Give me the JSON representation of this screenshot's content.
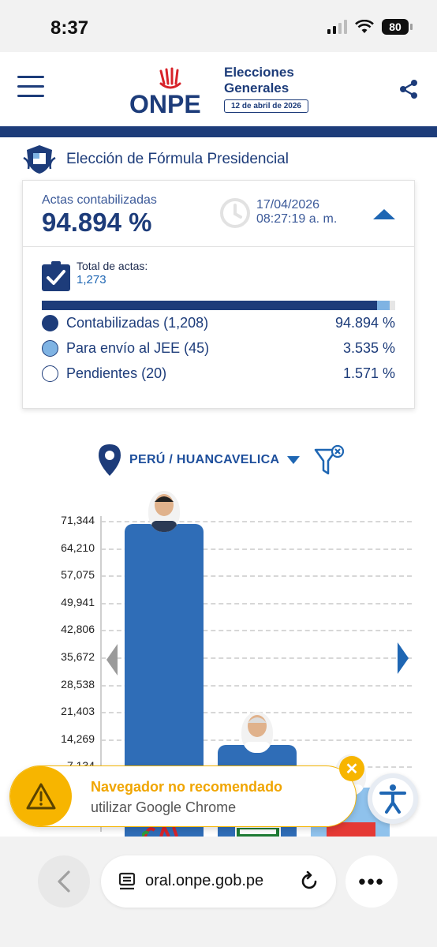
{
  "status_bar": {
    "time": "8:37",
    "battery": "80"
  },
  "header": {
    "logo_text": "ONPE",
    "title_line1": "Elecciones",
    "title_line2": "Generales",
    "election_date": "12 de abril de 2026"
  },
  "section": {
    "title": "Elección de Fórmula Presidencial"
  },
  "summary": {
    "actas_label": "Actas contabilizadas",
    "actas_percent": "94.894 %",
    "updated_date": "17/04/2026",
    "updated_time": "08:27:19 a. m.",
    "total_label": "Total de actas:",
    "total_value": "1,273",
    "progress": {
      "contabilizadas": 0.94894,
      "jee": 0.03535,
      "pendientes": 0.01571
    },
    "legend": [
      {
        "label": "Contabilizadas (1,208)",
        "percent": "94.894 %",
        "color": "#1d3c7a"
      },
      {
        "label": "Para envío al JEE (45)",
        "percent": "3.535 %",
        "color": "#7fb3e3"
      },
      {
        "label": "Pendientes (20)",
        "percent": "1.571 %",
        "color": "#ffffff"
      }
    ]
  },
  "location": {
    "text": "PERÚ / HUANCAVELICA"
  },
  "chart_data": {
    "type": "bar",
    "y_ticks": [
      "71,344",
      "64,210",
      "57,075",
      "49,941",
      "42,806",
      "35,672",
      "28,538",
      "21,403",
      "14,269",
      "7,134"
    ],
    "ylim": [
      0,
      71344
    ],
    "values": [
      71344,
      21403,
      11700
    ],
    "colors": [
      "#2f6db7",
      "#2f6db7",
      "#8fc2ec"
    ]
  },
  "banner": {
    "title": "Navegador no recomendado",
    "subtitle": "utilizar Google Chrome"
  },
  "browser": {
    "url": "oral.onpe.gob.pe"
  },
  "colors": {
    "brand": "#1d3c7a",
    "accent": "#1e66b3",
    "warning": "#f7b500"
  }
}
